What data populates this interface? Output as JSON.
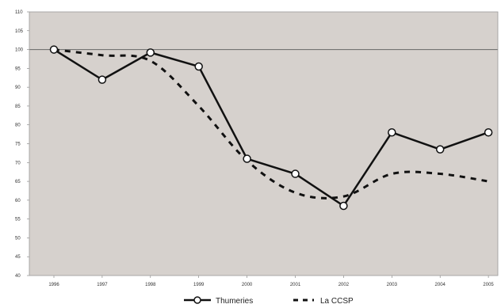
{
  "chart_data": {
    "type": "line",
    "title": "",
    "xlabel": "",
    "ylabel": "",
    "x": [
      "1996",
      "1997",
      "1998",
      "1999",
      "2000",
      "2001",
      "2002",
      "2003",
      "2004",
      "2005"
    ],
    "ylim": [
      40,
      110
    ],
    "yticks": [
      40,
      45,
      50,
      55,
      60,
      65,
      70,
      75,
      80,
      85,
      90,
      95,
      100,
      105,
      110
    ],
    "ytick_labels": [
      "40",
      "45",
      "50",
      "55",
      "60",
      "65",
      "70",
      "75",
      "80",
      "85",
      "90",
      "95",
      "100",
      "105",
      "110"
    ],
    "reference_line": 100,
    "grid": false,
    "legend_position": "bottom-center",
    "background_color": "#d6d1cd",
    "series": [
      {
        "name": "Thumeries",
        "style": "solid",
        "marker": "circle",
        "color": "#111111",
        "values": [
          100,
          92,
          99.2,
          95.5,
          71,
          67,
          58.5,
          78,
          73.5,
          78
        ]
      },
      {
        "name": "La CCSP",
        "style": "dashed",
        "marker": "none",
        "color": "#111111",
        "values": [
          100,
          98.5,
          97,
          85,
          70.5,
          62,
          61,
          67,
          67,
          65
        ]
      }
    ]
  }
}
